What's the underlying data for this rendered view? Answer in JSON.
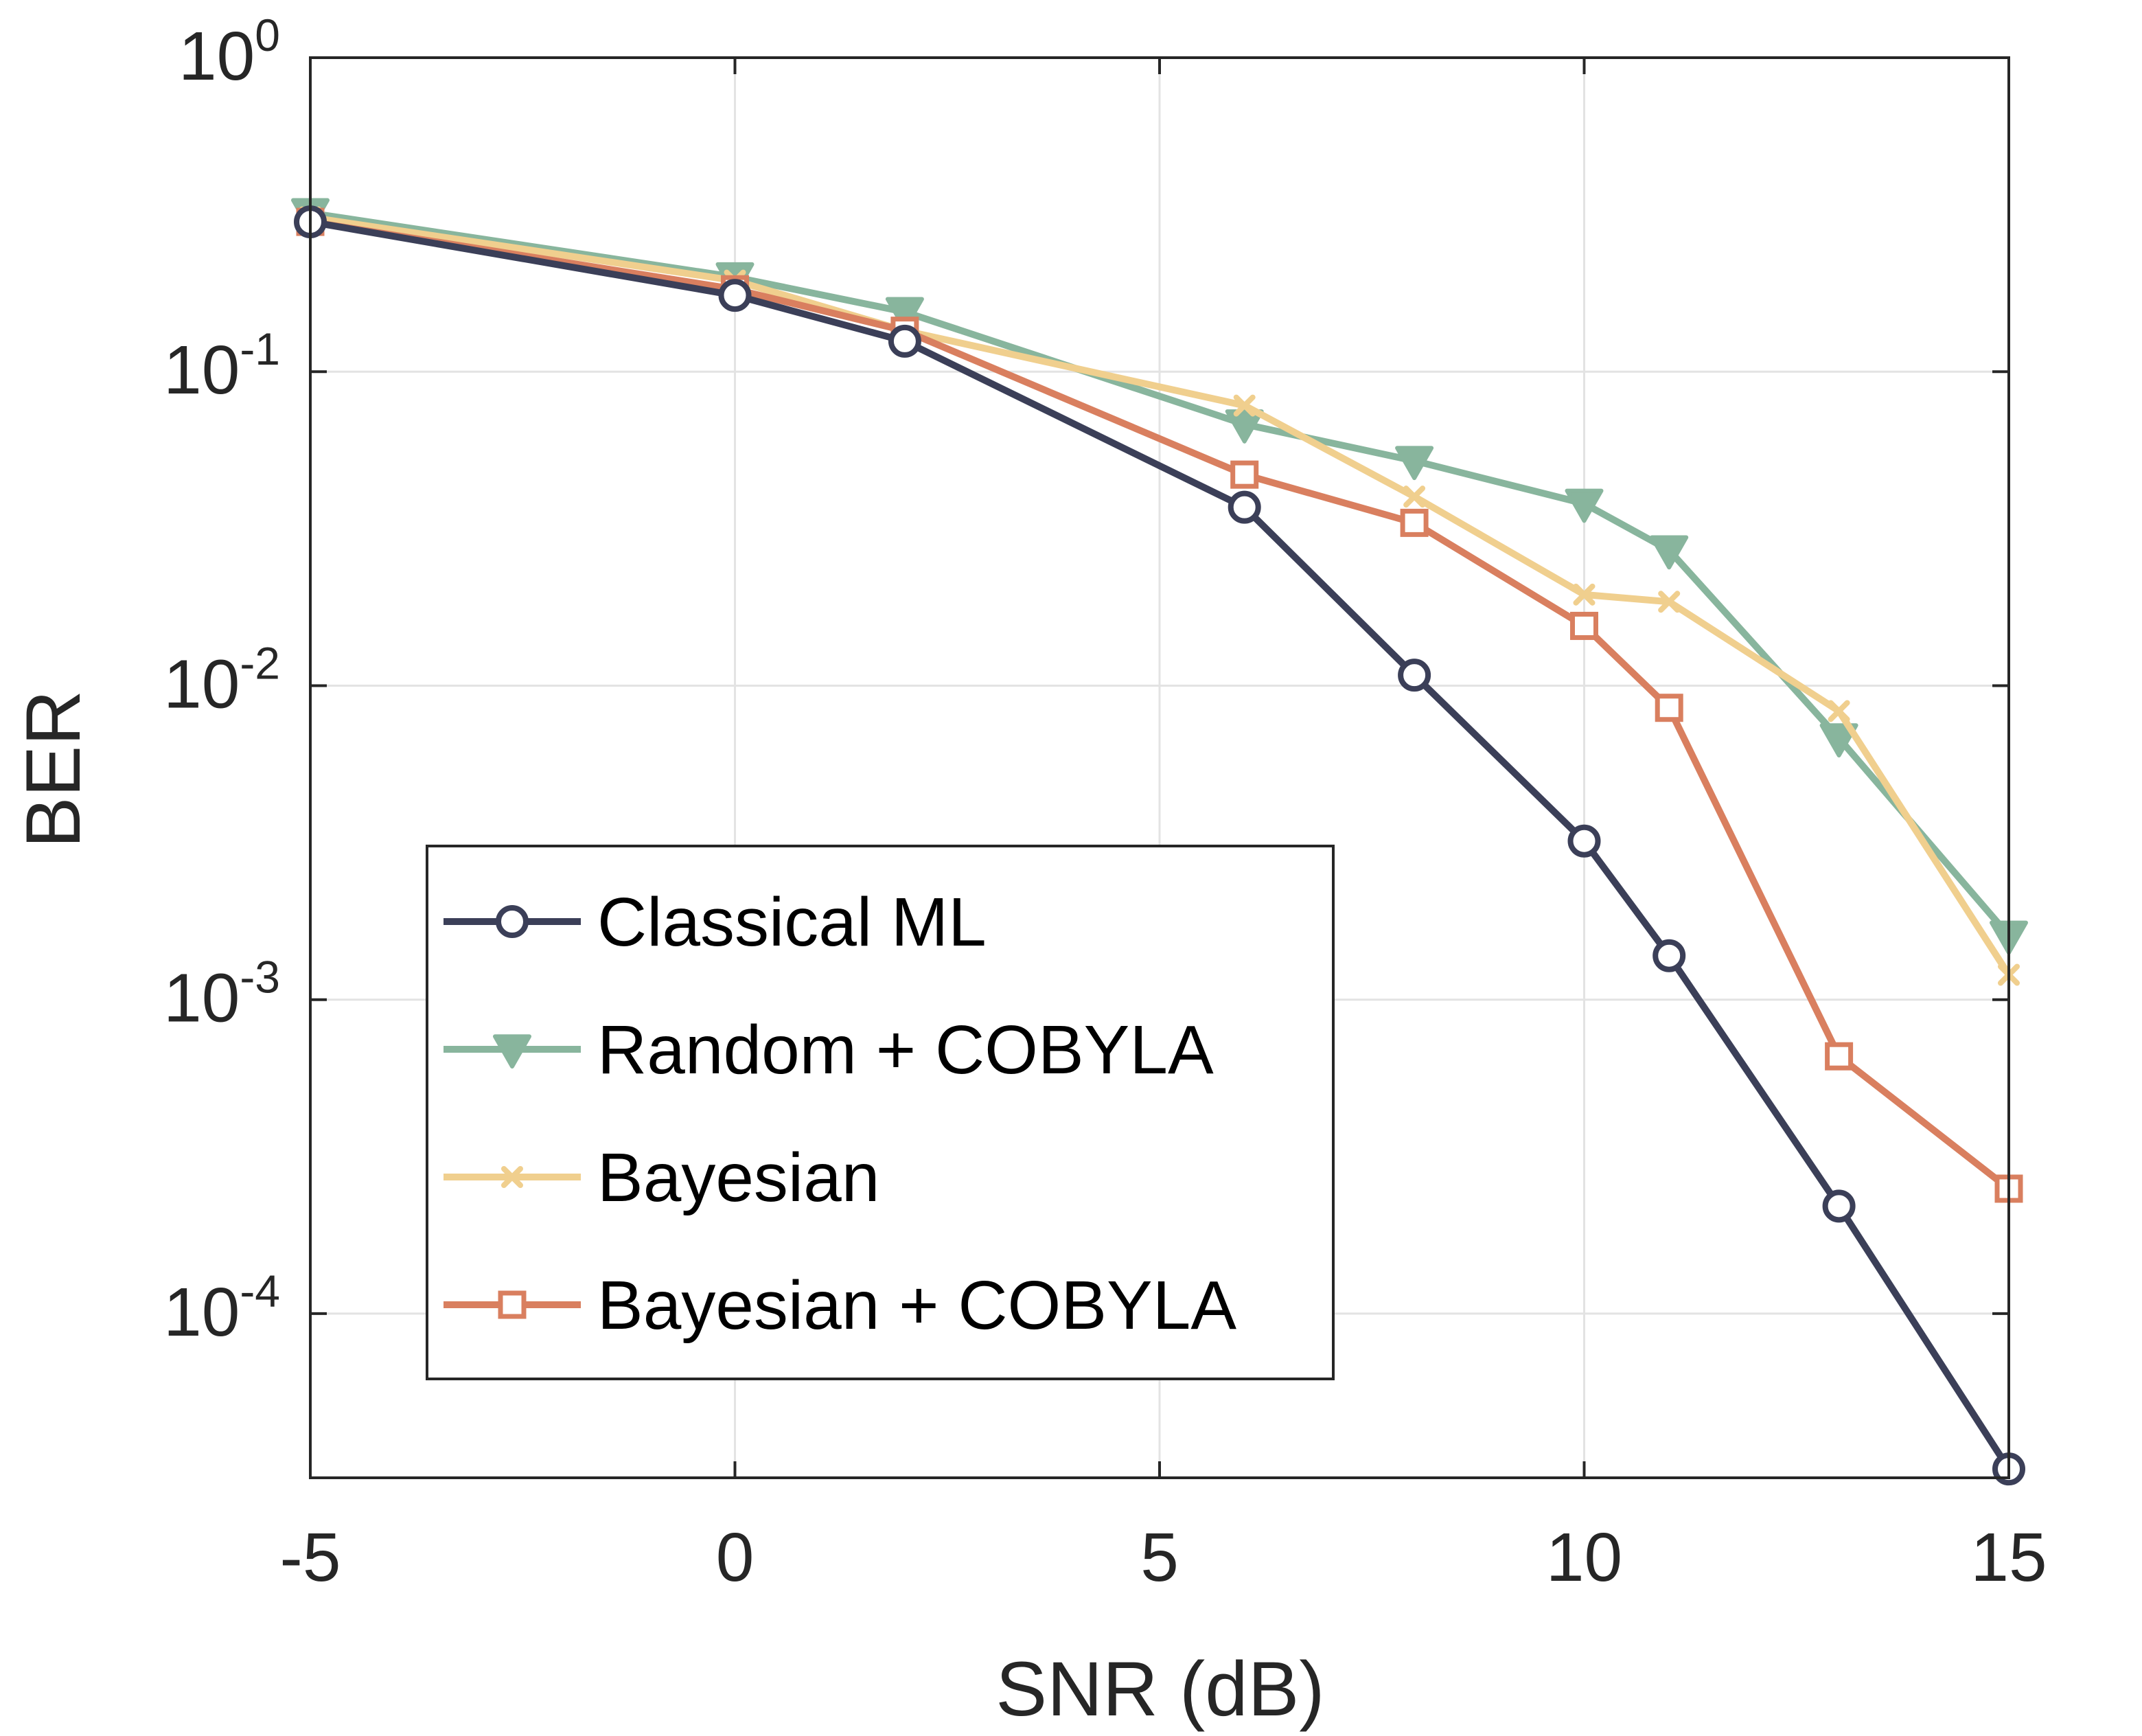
{
  "chart_data": {
    "type": "line",
    "xlabel": "SNR (dB)",
    "ylabel": "BER",
    "xlim": [
      -5,
      15
    ],
    "ylim": [
      3e-05,
      1
    ],
    "yscale": "log",
    "grid": true,
    "legend_position": "lower-left",
    "x_ticks": [
      {
        "value": -5,
        "label": "-5"
      },
      {
        "value": 0,
        "label": "0"
      },
      {
        "value": 5,
        "label": "5"
      },
      {
        "value": 10,
        "label": "10"
      },
      {
        "value": 15,
        "label": "15"
      }
    ],
    "y_ticks": [
      {
        "value": 1,
        "base": "10",
        "exp": "0"
      },
      {
        "value": 0.1,
        "base": "10",
        "exp": "-1"
      },
      {
        "value": 0.01,
        "base": "10",
        "exp": "-2"
      },
      {
        "value": 0.001,
        "base": "10",
        "exp": "-3"
      },
      {
        "value": 0.0001,
        "base": "10",
        "exp": "-4"
      }
    ],
    "series": [
      {
        "name": "Classical ML",
        "color": "#3b3f58",
        "marker": "circle",
        "x": [
          -5,
          0,
          2,
          6,
          8,
          10,
          11,
          13,
          15
        ],
        "y": [
          0.3,
          0.175,
          0.125,
          0.037,
          0.0108,
          0.0032,
          0.00138,
          0.00022,
          3.2e-05
        ]
      },
      {
        "name": "Random + COBYLA",
        "color": "#88b59d",
        "marker": "triangle-down",
        "x": [
          -5,
          0,
          2,
          6,
          8,
          10,
          11,
          13,
          15
        ],
        "y": [
          0.32,
          0.2,
          0.155,
          0.068,
          0.052,
          0.038,
          0.027,
          0.0068,
          0.0016
        ]
      },
      {
        "name": "Bayesian",
        "color": "#f0cf8e",
        "marker": "x",
        "x": [
          -5,
          0,
          2,
          6,
          8,
          10,
          11,
          13,
          15
        ],
        "y": [
          0.31,
          0.195,
          0.135,
          0.078,
          0.04,
          0.0195,
          0.0185,
          0.0083,
          0.0012
        ]
      },
      {
        "name": "Bayesian + COBYLA",
        "color": "#d97f5f",
        "marker": "square",
        "x": [
          -5,
          0,
          2,
          6,
          8,
          10,
          11,
          13,
          15
        ],
        "y": [
          0.3,
          0.183,
          0.135,
          0.047,
          0.033,
          0.0155,
          0.0085,
          0.00066,
          0.00025
        ]
      }
    ]
  }
}
